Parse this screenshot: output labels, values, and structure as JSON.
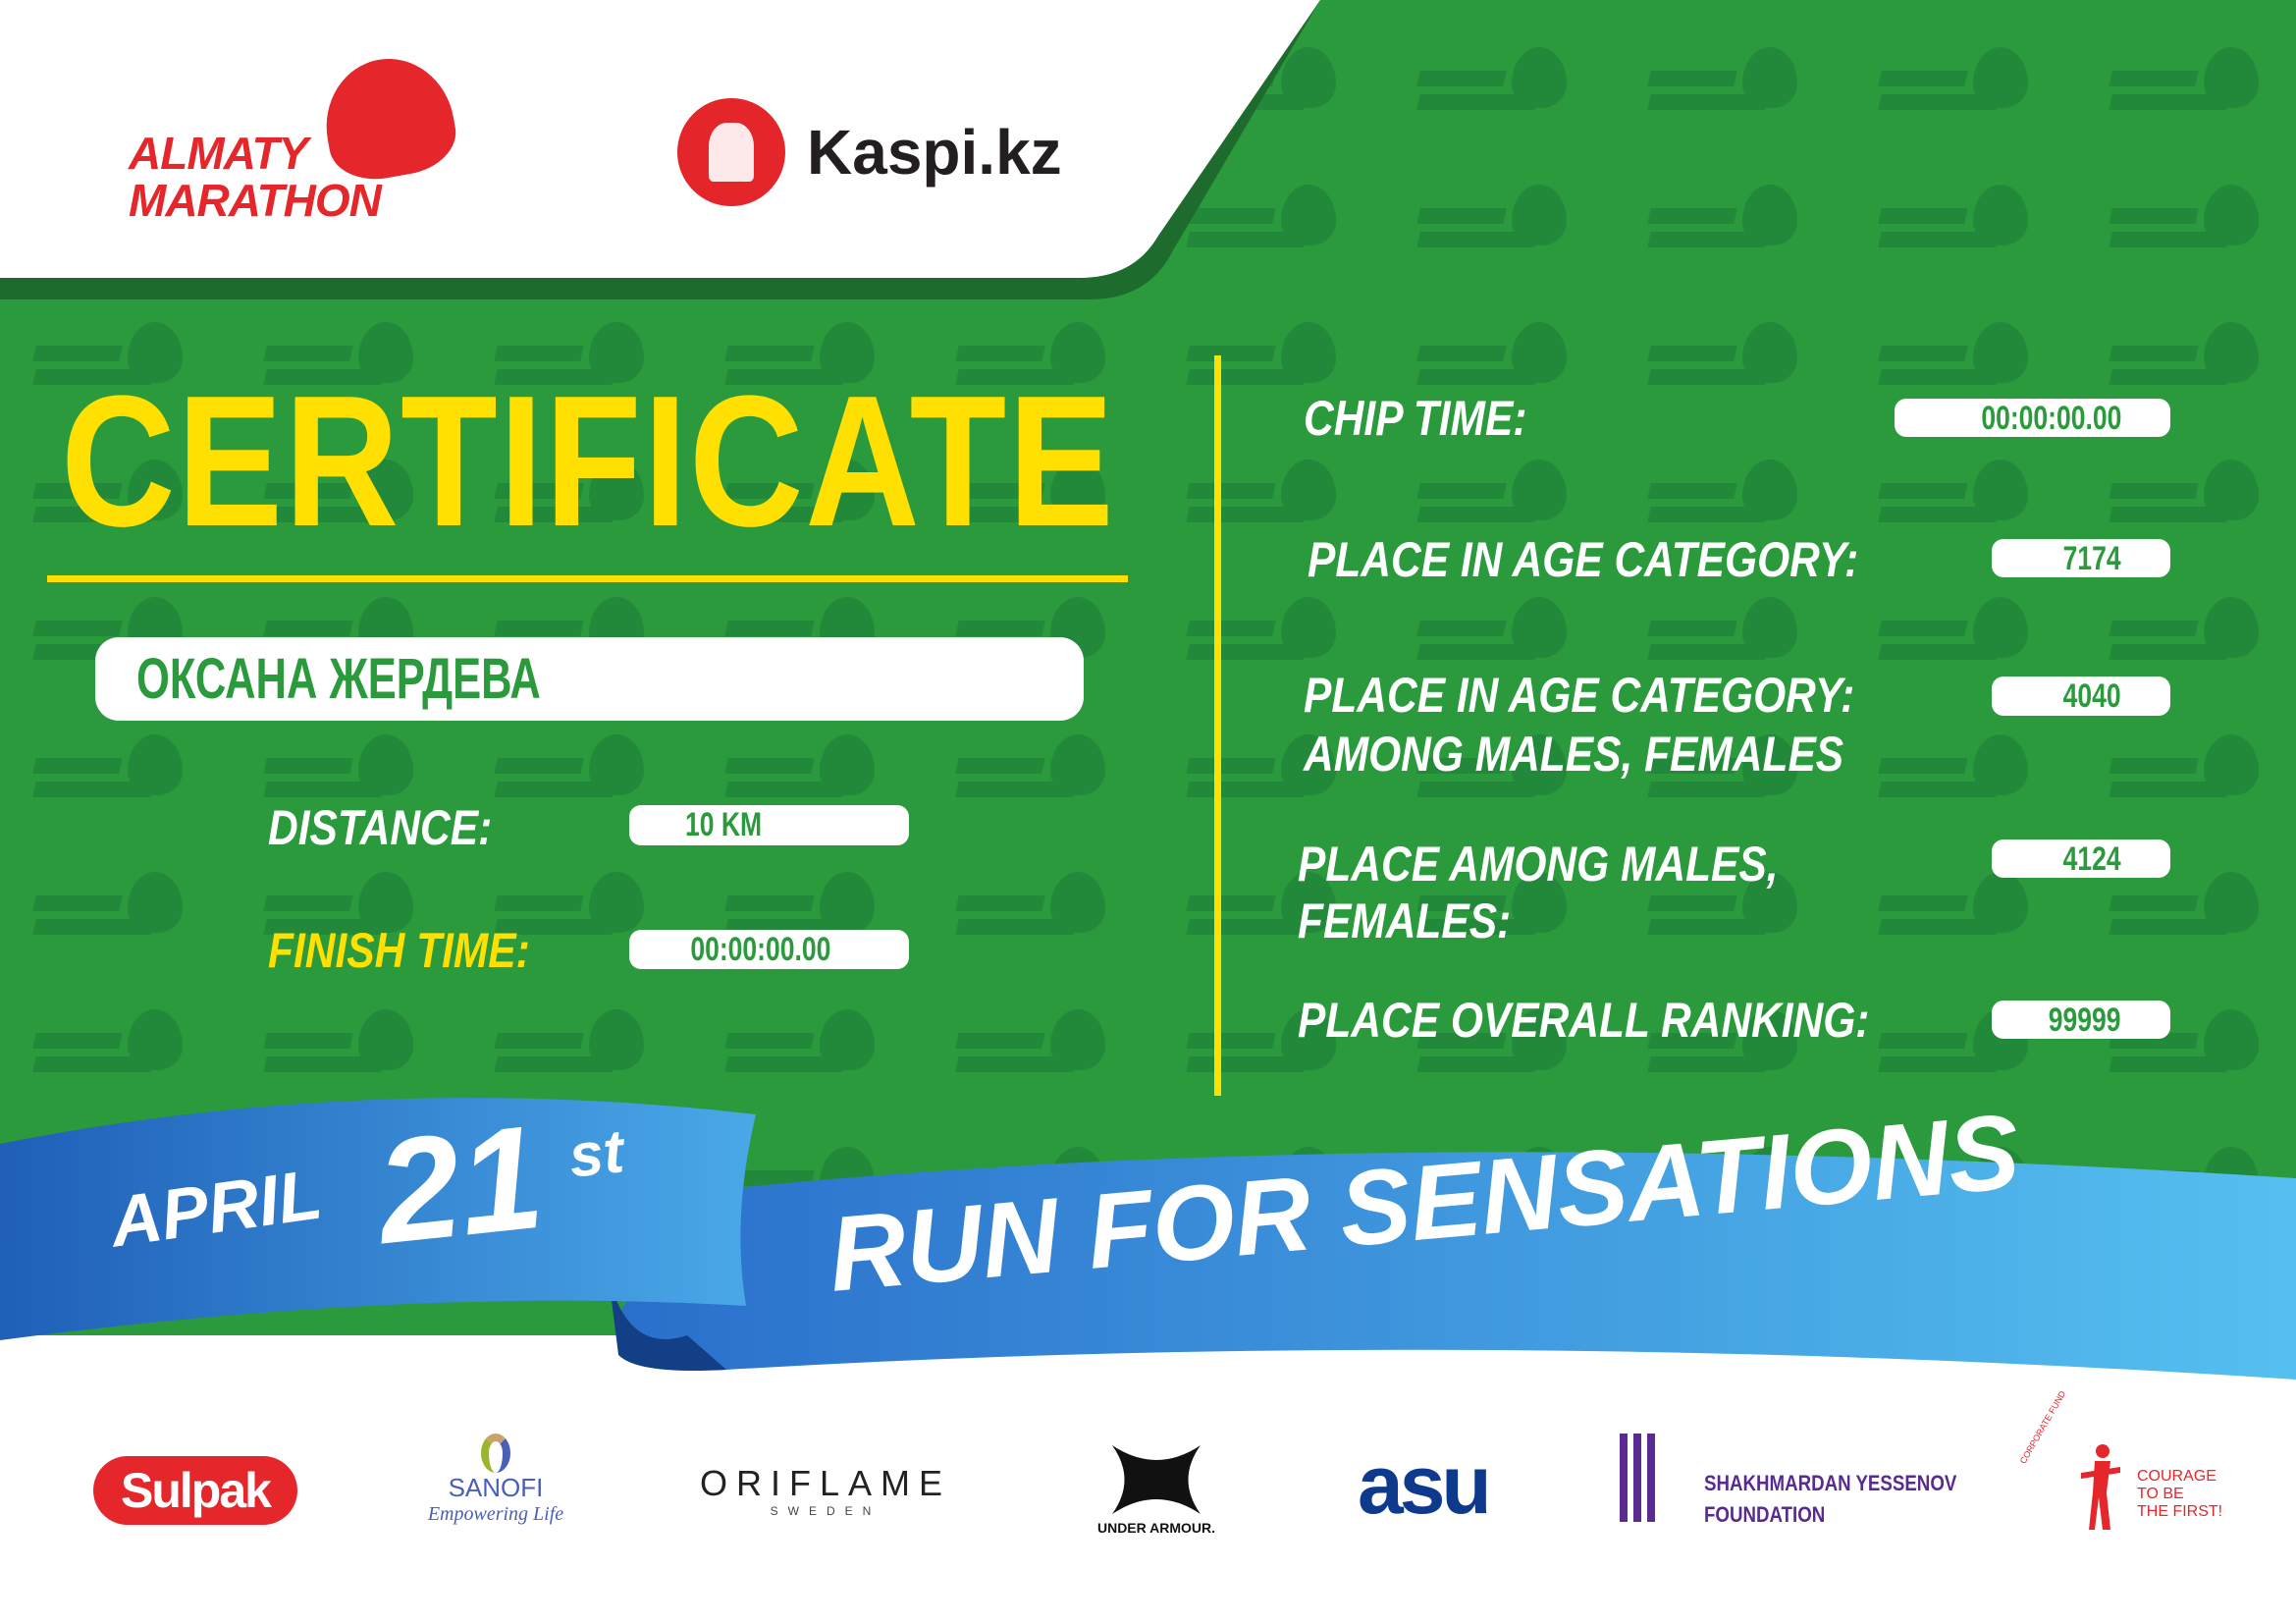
{
  "header": {
    "organizer_logo": "ALMATY MARATHON",
    "partner_logo": "Kaspi.kz"
  },
  "title": "CERTIFICATE",
  "participant_name": "ОКСАНА ЖЕРДЕВА",
  "left_fields": [
    {
      "label": "DISTANCE:",
      "value": "10 KM"
    },
    {
      "label": "FINISH TIME:",
      "value": "00:00:00.00"
    }
  ],
  "right_fields": [
    {
      "label": "CHIP TIME:",
      "value": "00:00:00.00"
    },
    {
      "label": "PLACE IN AGE CATEGORY:",
      "value": "7174"
    },
    {
      "label_line1": "PLACE IN AGE CATEGORY:",
      "label_line2": "AMONG MALES, FEMALES",
      "value": "4040"
    },
    {
      "label_line1": "PLACE AMONG MALES,",
      "label_line2": "FEMALES:",
      "value": "4124"
    },
    {
      "label": "PLACE OVERALL RANKING:",
      "value": "99999"
    }
  ],
  "ribbon": {
    "month": "APRIL",
    "day": "21",
    "suffix": "st",
    "slogan": "RUN FOR SENSATIONS"
  },
  "watermark": "ALMATY MARATHON",
  "sponsors": {
    "sulpak": "Sulpak",
    "sanofi": "SANOFI",
    "sanofi_tagline": "Empowering Life",
    "oriflame": "ORIFLAME",
    "oriflame_sub": "SWEDEN",
    "under_armour": "UNDER ARMOUR.",
    "asu": "asu",
    "yessenov_line1": "SHAKHMARDAN YESSENOV",
    "yessenov_line2": "FOUNDATION",
    "courage_fund": "CORPORATE FUND",
    "courage_line1": "COURAGE",
    "courage_line2": "TO BE",
    "courage_line3": "THE FIRST!"
  },
  "colors": {
    "green": "#2a9a3c",
    "yellow": "#ffe000",
    "red": "#e5262b",
    "blue": "#2e7fd0"
  }
}
